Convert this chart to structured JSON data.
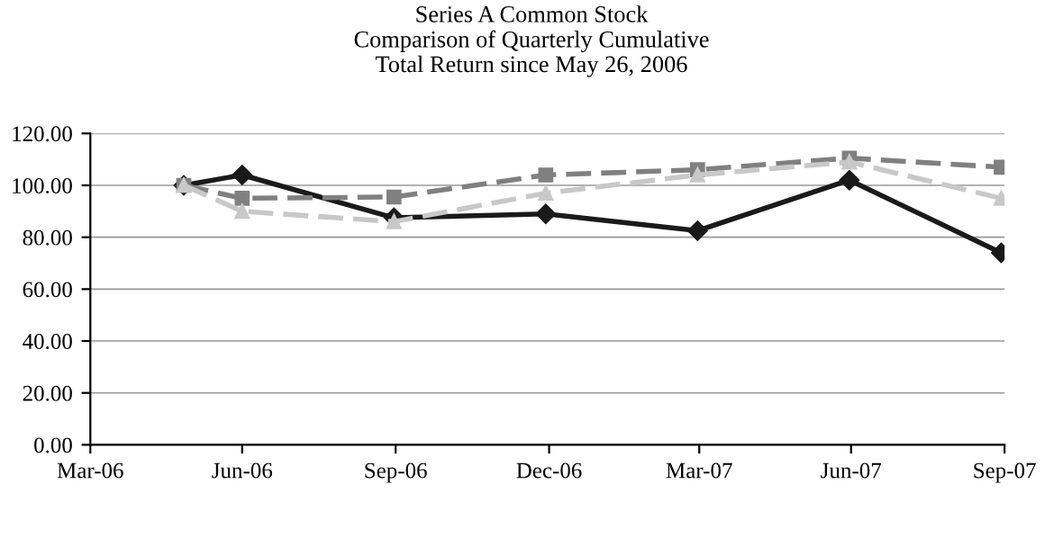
{
  "chart_data": {
    "type": "line",
    "title": "Series A Common Stock\nComparison of Quarterly Cumulative\nTotal Return since May 26, 2006",
    "x": [
      "2006-05-26",
      "2006-06-30",
      "2006-09-29",
      "2006-12-29",
      "2007-03-30",
      "2007-06-29",
      "2007-09-28"
    ],
    "series": [
      {
        "color": "#1a1a1a",
        "values": [
          100,
          104,
          87.5,
          89,
          82.5,
          102,
          74
        ],
        "marker": "diamond",
        "line_style": "solid"
      },
      {
        "color": "#808080",
        "values": [
          100,
          95,
          95.5,
          104,
          106,
          110.5,
          107
        ],
        "marker": "square",
        "line_style": "dashed"
      },
      {
        "color": "#c8c8c8",
        "values": [
          100,
          90,
          86,
          97,
          104,
          109,
          95
        ],
        "marker": "triangle",
        "line_style": "dashed"
      }
    ],
    "xlim": [
      "2006-03-31",
      "2007-09-30"
    ],
    "xticks": [
      {
        "value": "2006-03-31",
        "label": "Mar-06"
      },
      {
        "value": "2006-06-30",
        "label": "Jun-06"
      },
      {
        "value": "2006-09-30",
        "label": "Sep-06"
      },
      {
        "value": "2006-12-31",
        "label": "Dec-06"
      },
      {
        "value": "2007-03-31",
        "label": "Mar-07"
      },
      {
        "value": "2007-06-30",
        "label": "Jun-07"
      },
      {
        "value": "2007-09-30",
        "label": "Sep-07"
      }
    ],
    "ylim": [
      0,
      120
    ],
    "yticks": [
      {
        "value": 0,
        "label": "0.00"
      },
      {
        "value": 20,
        "label": "20.00"
      },
      {
        "value": 40,
        "label": "40.00"
      },
      {
        "value": 60,
        "label": "60.00"
      },
      {
        "value": 80,
        "label": "80.00"
      },
      {
        "value": 100,
        "label": "100.00"
      },
      {
        "value": 120,
        "label": "120.00"
      }
    ],
    "grid": "y"
  }
}
